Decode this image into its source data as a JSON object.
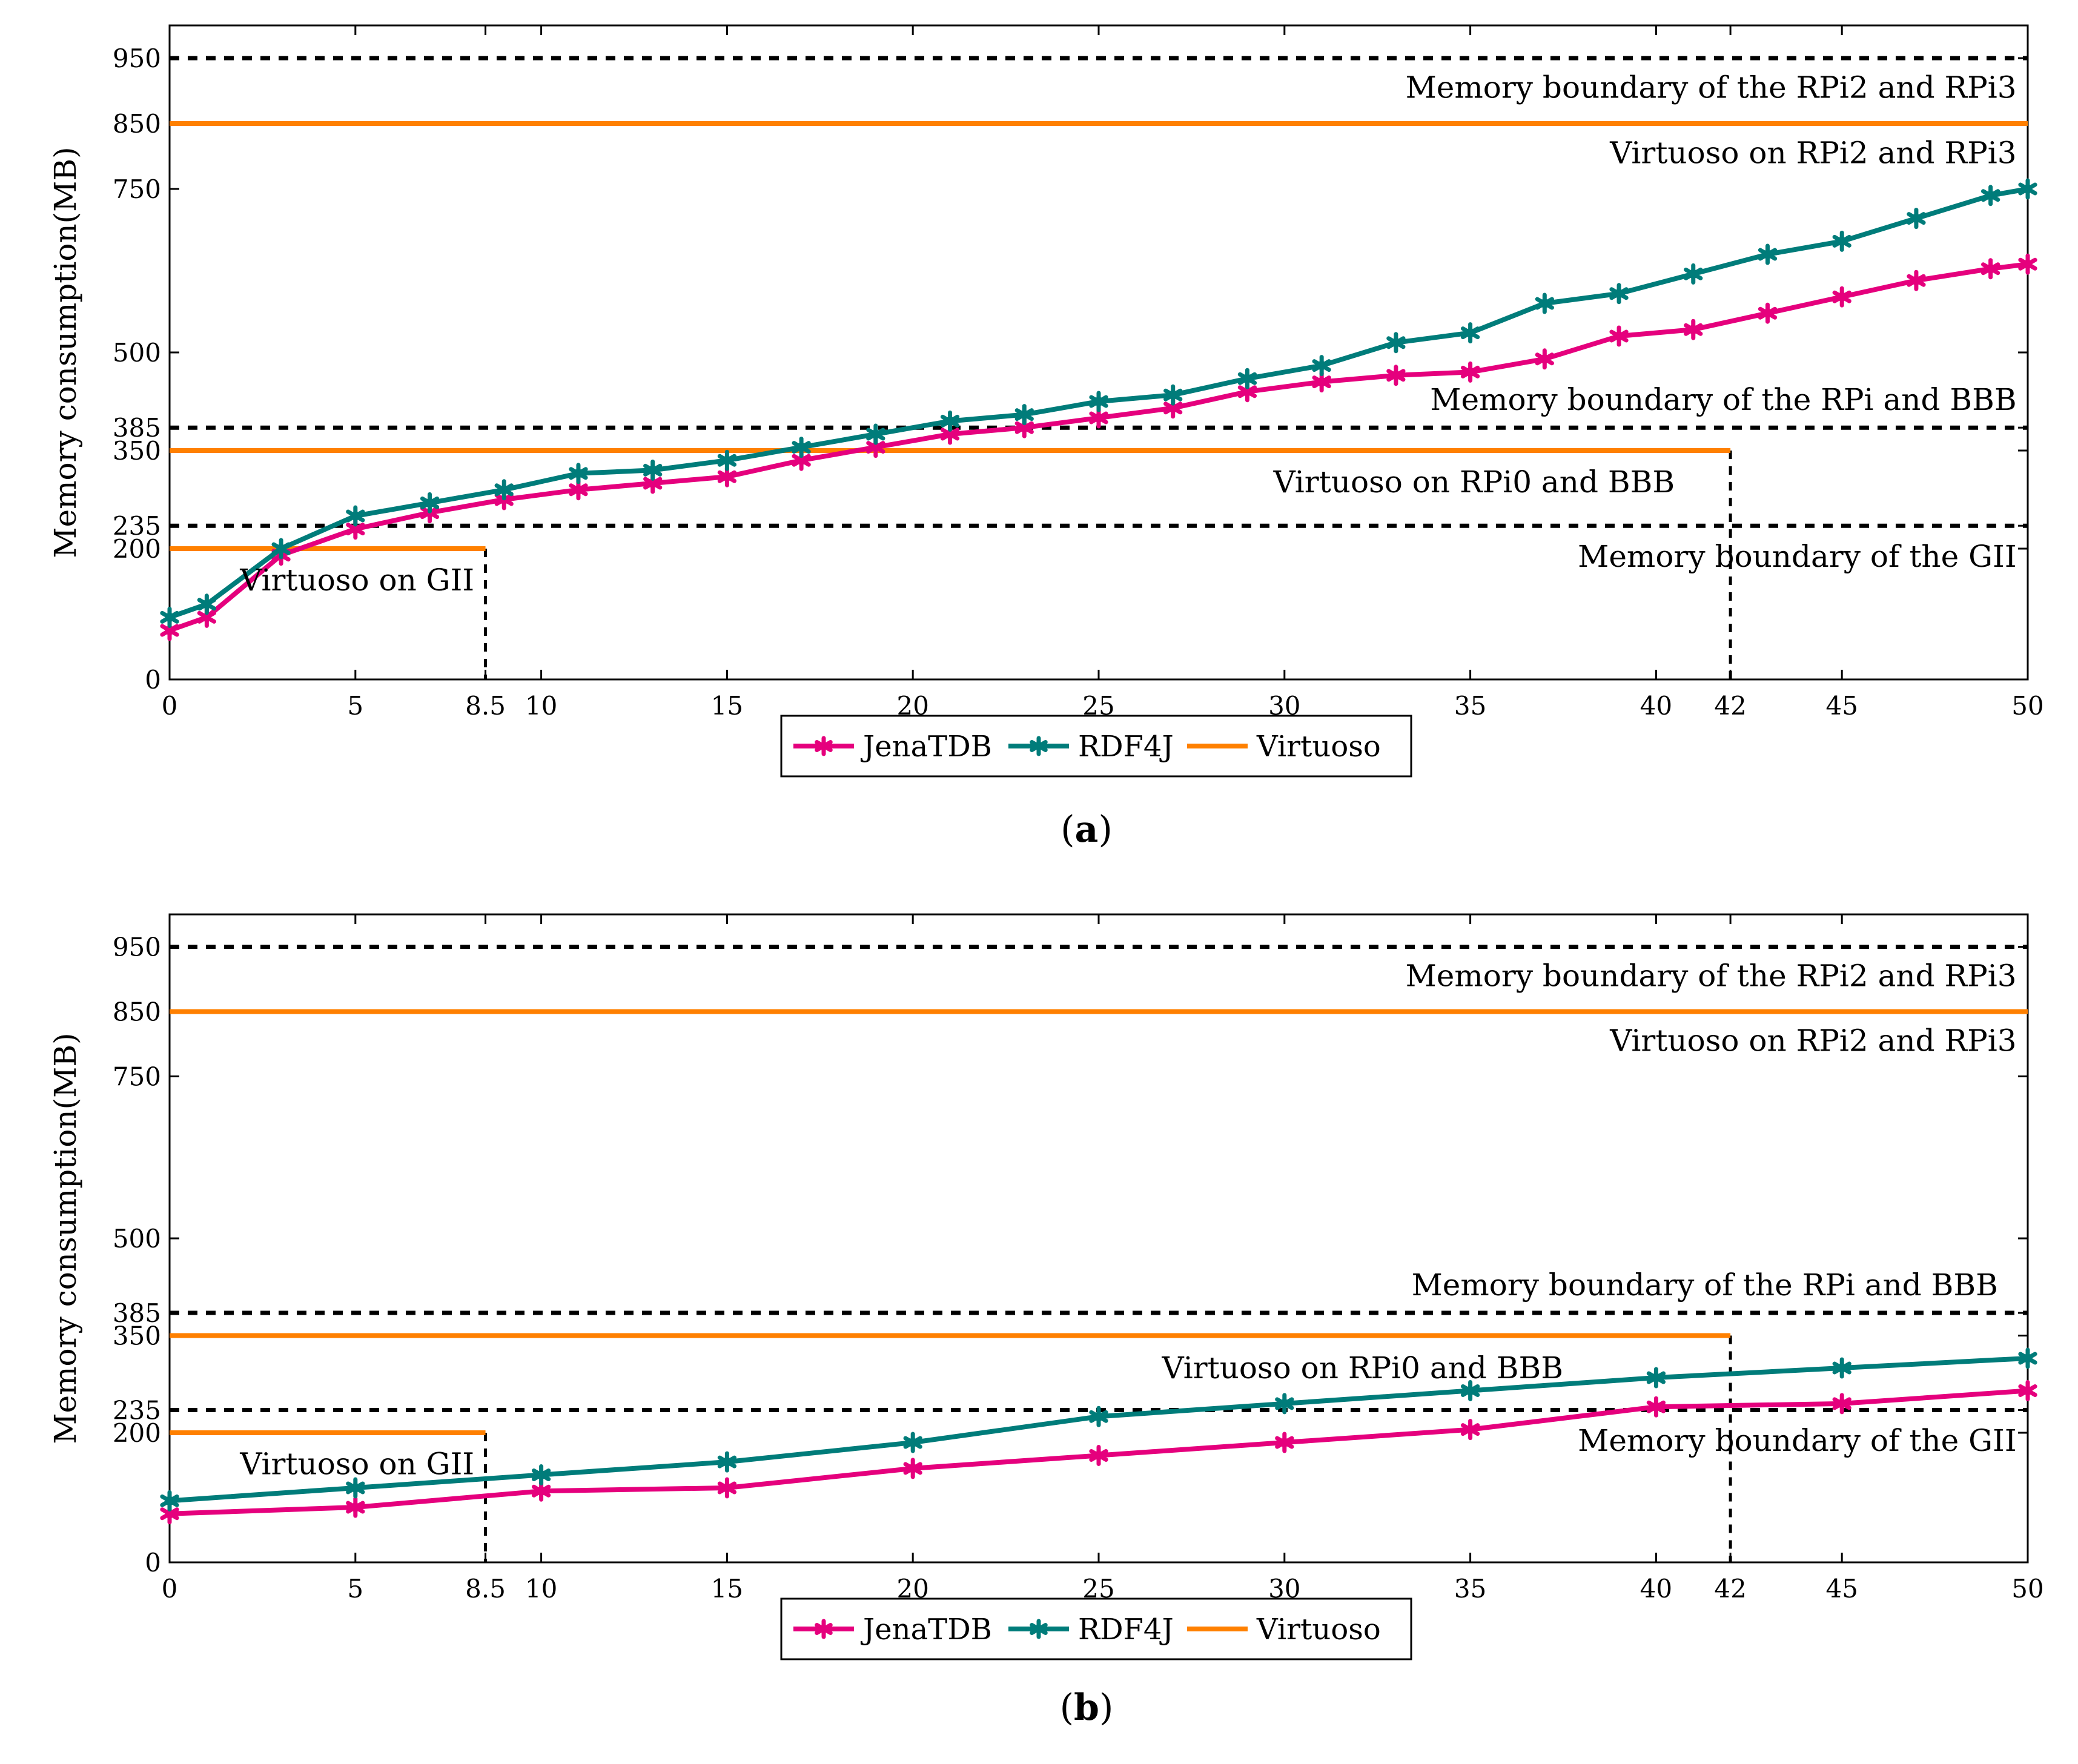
{
  "colors": {
    "jena": "#e5007d",
    "rdf4j": "#007c7a",
    "virtuoso": "#ff8000",
    "boundary": "#000000"
  },
  "chart_data": [
    {
      "type": "line",
      "panel_label": "a",
      "ylabel": "Memory consumption(MB)",
      "xlim": [
        0,
        50
      ],
      "ylim": [
        0,
        1000
      ],
      "xticks": [
        0,
        5,
        8.5,
        10,
        15,
        20,
        25,
        30,
        35,
        40,
        42,
        45,
        50
      ],
      "yticks": [
        0,
        200,
        235,
        350,
        385,
        500,
        750,
        850,
        950
      ],
      "series": [
        {
          "name": "JenaTDB",
          "color_key": "jena",
          "x": [
            0,
            1,
            3,
            5,
            7,
            9,
            11,
            13,
            15,
            17,
            19,
            21,
            23,
            25,
            27,
            29,
            31,
            33,
            35,
            37,
            39,
            41,
            43,
            45,
            47,
            49,
            50
          ],
          "y": [
            75,
            95,
            190,
            230,
            255,
            275,
            290,
            300,
            310,
            335,
            355,
            375,
            385,
            400,
            415,
            440,
            455,
            465,
            470,
            490,
            525,
            535,
            560,
            585,
            610,
            628,
            635
          ]
        },
        {
          "name": "RDF4J",
          "color_key": "rdf4j",
          "x": [
            0,
            1,
            3,
            5,
            7,
            9,
            11,
            13,
            15,
            17,
            19,
            21,
            23,
            25,
            27,
            29,
            31,
            33,
            35,
            37,
            39,
            41,
            43,
            45,
            47,
            49,
            50
          ],
          "y": [
            95,
            115,
            200,
            250,
            270,
            290,
            315,
            320,
            335,
            355,
            375,
            395,
            405,
            425,
            435,
            460,
            480,
            515,
            530,
            575,
            590,
            620,
            650,
            670,
            705,
            740,
            750
          ]
        }
      ],
      "reference_lines": [
        {
          "kind": "boundary",
          "y": 950,
          "x_end": 50,
          "label": "Memory boundary of the RPi2 and RPi3",
          "label_x": 49.7,
          "label_y": 905
        },
        {
          "kind": "virtuoso",
          "y": 850,
          "x_end": 50,
          "label": "Virtuoso on RPi2 and RPi3",
          "label_x": 49.7,
          "label_y": 805
        },
        {
          "kind": "boundary",
          "y": 385,
          "x_end": 50,
          "label": "Memory boundary of the RPi and BBB",
          "label_x": 49.7,
          "label_y": 428
        },
        {
          "kind": "virtuoso",
          "y": 350,
          "x_end": 42,
          "label": "Virtuoso on RPi0 and BBB",
          "label_x": 40.5,
          "label_y": 302
        },
        {
          "kind": "boundary",
          "y": 235,
          "x_end": 50,
          "label": "Memory boundary of the GII",
          "label_x": 49.7,
          "label_y": 188
        },
        {
          "kind": "virtuoso",
          "y": 200,
          "x_end": 8.5,
          "label": "Virtuoso on GII",
          "label_x": 8.2,
          "label_y": 152
        }
      ],
      "drop_lines": [
        {
          "x": 8.5,
          "y_top": 200
        },
        {
          "x": 42,
          "y_top": 350
        }
      ],
      "legend": [
        "JenaTDB",
        "RDF4J",
        "Virtuoso"
      ],
      "legend_position": "bottom-center"
    },
    {
      "type": "line",
      "panel_label": "b",
      "ylabel": "Memory consumption(MB)",
      "xlim": [
        0,
        50
      ],
      "ylim": [
        0,
        1000
      ],
      "xticks": [
        0,
        5,
        8.5,
        10,
        15,
        20,
        25,
        30,
        35,
        40,
        42,
        45,
        50
      ],
      "yticks": [
        0,
        200,
        235,
        350,
        385,
        500,
        750,
        850,
        950
      ],
      "series": [
        {
          "name": "JenaTDB",
          "color_key": "jena",
          "x": [
            0,
            5,
            10,
            15,
            20,
            25,
            30,
            35,
            40,
            45,
            50
          ],
          "y": [
            75,
            85,
            110,
            115,
            145,
            165,
            185,
            205,
            240,
            245,
            265
          ]
        },
        {
          "name": "RDF4J",
          "color_key": "rdf4j",
          "x": [
            0,
            5,
            10,
            15,
            20,
            25,
            30,
            35,
            40,
            45,
            50
          ],
          "y": [
            95,
            115,
            135,
            155,
            185,
            225,
            245,
            265,
            285,
            300,
            315
          ]
        }
      ],
      "reference_lines": [
        {
          "kind": "boundary",
          "y": 950,
          "x_end": 50,
          "label": "Memory boundary of the RPi2 and RPi3",
          "label_x": 49.7,
          "label_y": 905
        },
        {
          "kind": "virtuoso",
          "y": 850,
          "x_end": 50,
          "label": "Virtuoso on RPi2 and RPi3",
          "label_x": 49.7,
          "label_y": 805
        },
        {
          "kind": "boundary",
          "y": 385,
          "x_end": 50,
          "label": "Memory boundary of the RPi and BBB",
          "label_x": 49.2,
          "label_y": 428
        },
        {
          "kind": "virtuoso",
          "y": 350,
          "x_end": 42,
          "label": "Virtuoso on RPi0 and BBB",
          "label_x": 37.5,
          "label_y": 300
        },
        {
          "kind": "boundary",
          "y": 235,
          "x_end": 50,
          "label": "Memory boundary of the GII",
          "label_x": 49.7,
          "label_y": 188
        },
        {
          "kind": "virtuoso",
          "y": 200,
          "x_end": 8.5,
          "label": "Virtuoso on GII",
          "label_x": 8.2,
          "label_y": 152
        }
      ],
      "drop_lines": [
        {
          "x": 8.5,
          "y_top": 200
        },
        {
          "x": 42,
          "y_top": 350
        }
      ],
      "legend": [
        "JenaTDB",
        "RDF4J",
        "Virtuoso"
      ],
      "legend_position": "bottom-center"
    }
  ]
}
